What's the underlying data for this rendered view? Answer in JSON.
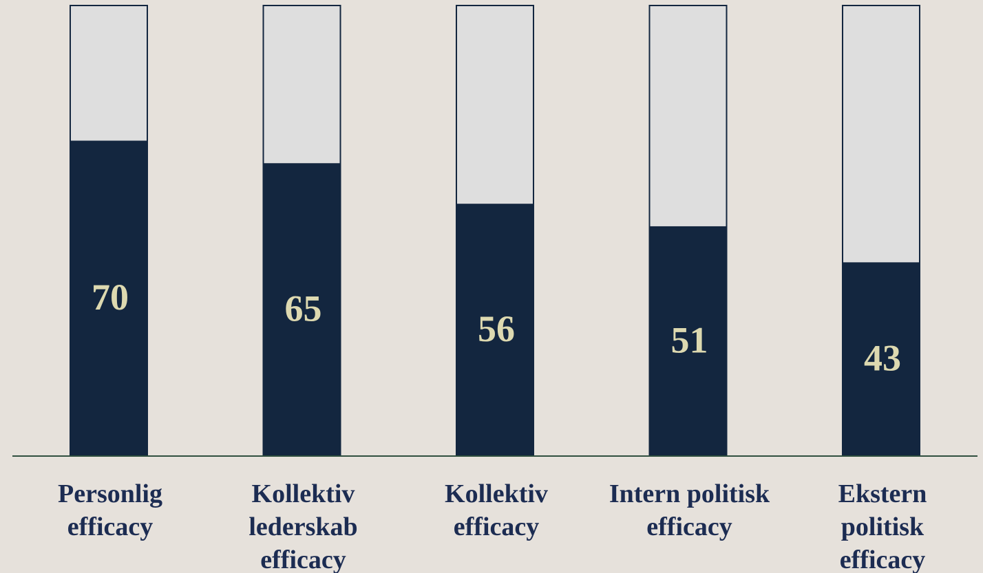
{
  "chart_data": {
    "type": "bar",
    "categories": [
      "Personlig\nefficacy",
      "Kollektiv\nlederskab\nefficacy",
      "Kollektiv\nefficacy",
      "Intern politisk\nefficacy",
      "Ekstern\npolitisk\nefficacy"
    ],
    "values": [
      70,
      65,
      56,
      51,
      43
    ],
    "color": "#13263f",
    "track_color": "#dedede",
    "label_color": "#ddd9b0",
    "ylim": [
      0,
      100
    ]
  }
}
